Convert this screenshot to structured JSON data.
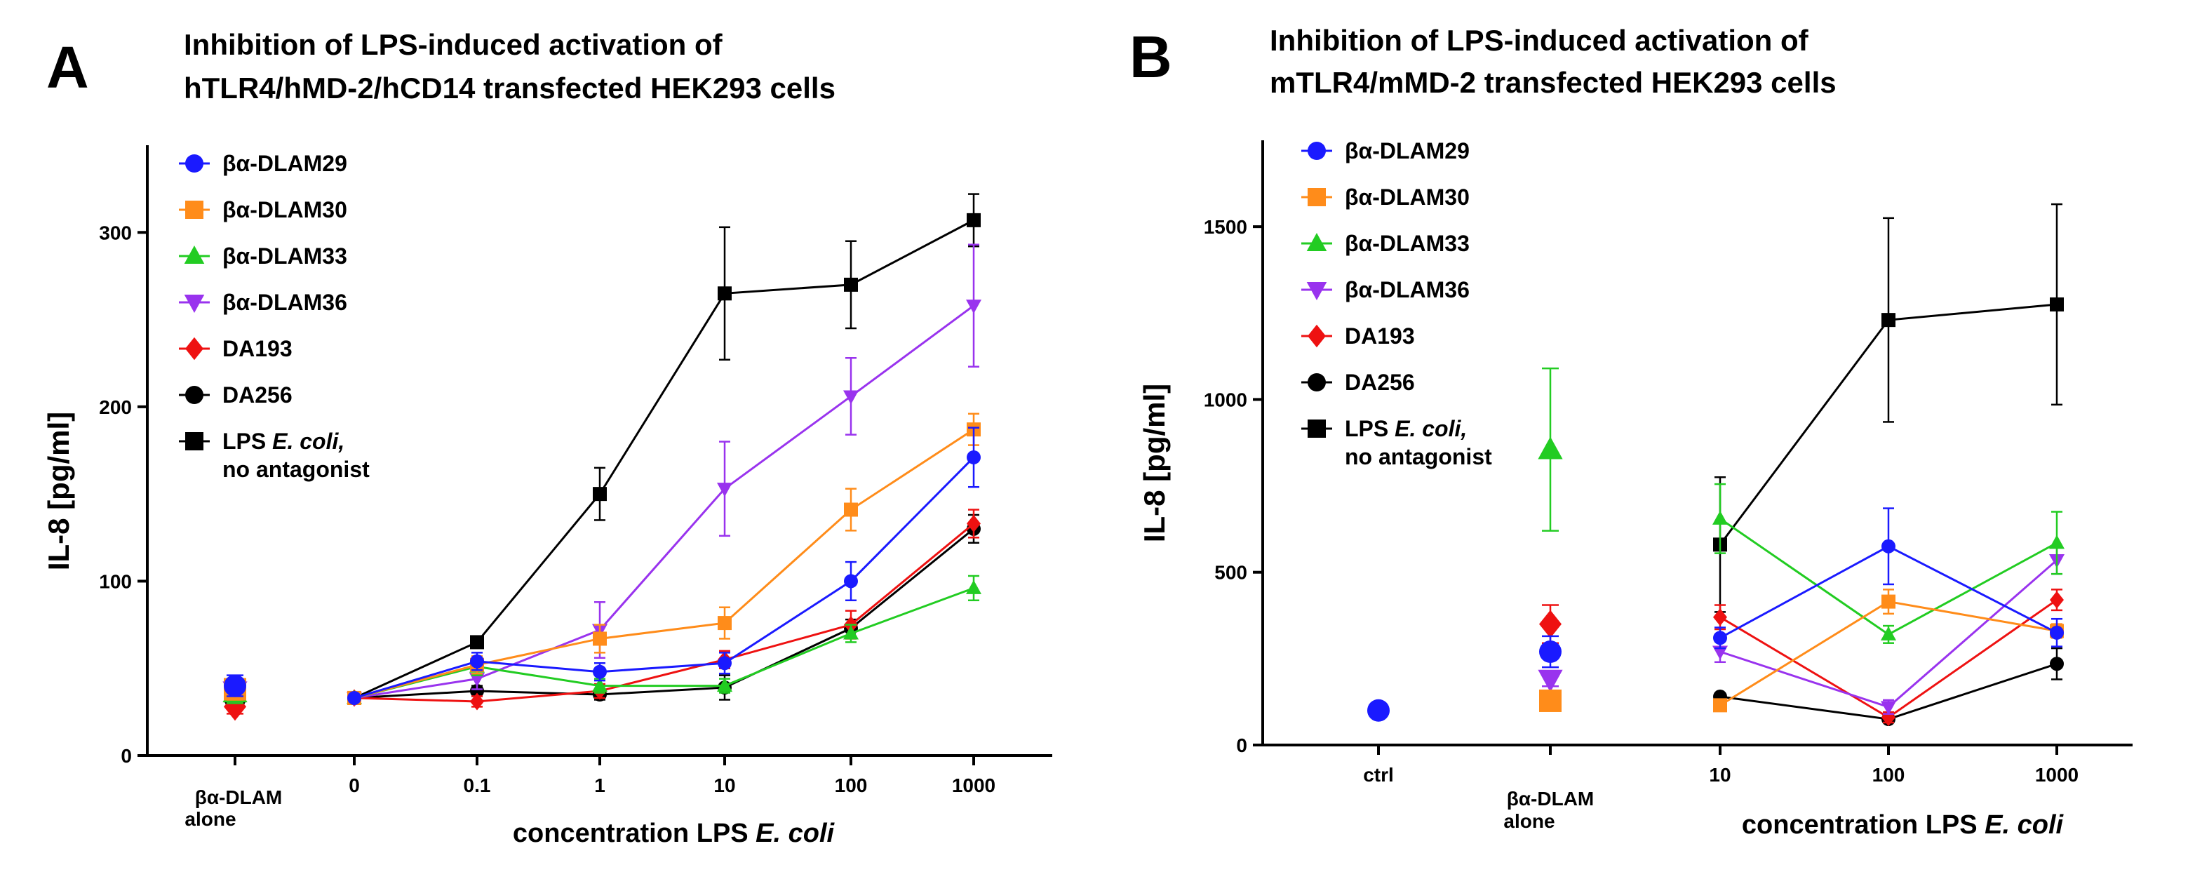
{
  "chart_data": [
    {
      "type": "line",
      "panel": "A",
      "title_lines": [
        "Inhibition of LPS-induced activation of",
        "hTLR4/hMD-2/hCD14 transfected HEK293 cells"
      ],
      "ylabel": "IL-8 [pg/ml]",
      "xlabel": "concentration LPS ",
      "xlabel_italic": "E. coli",
      "ylim": [
        0,
        350
      ],
      "yticks": [
        0,
        100,
        200,
        300
      ],
      "alone_label_lines": [
        "βα-DLAM",
        "alone"
      ],
      "categories": [
        "0",
        "0.1",
        "1",
        "10",
        "100",
        "1000"
      ],
      "series": [
        {
          "name": "βα-DLAM29",
          "color": "#1a1aff",
          "marker": "circle",
          "alone": 40,
          "alone_err": 6,
          "values": [
            33,
            54,
            48,
            53,
            100,
            171
          ],
          "errors": [
            2,
            5,
            5,
            6,
            11,
            17
          ]
        },
        {
          "name": "βα-DLAM30",
          "color": "#ff8c1a",
          "marker": "square",
          "alone": 38,
          "alone_err": 6,
          "values": [
            33,
            52,
            67,
            76,
            141,
            187
          ],
          "errors": [
            2,
            5,
            8,
            9,
            12,
            9
          ]
        },
        {
          "name": "βα-DLAM33",
          "color": "#22cc22",
          "marker": "triangle-up",
          "alone": 36,
          "alone_err": 6,
          "values": [
            33,
            51,
            40,
            40,
            70,
            96
          ],
          "errors": [
            2,
            5,
            4,
            4,
            5,
            7
          ]
        },
        {
          "name": "βα-DLAM36",
          "color": "#9933ee",
          "marker": "triangle-down",
          "alone": 37,
          "alone_err": 6,
          "values": [
            33,
            44,
            72,
            153,
            206,
            258
          ],
          "errors": [
            2,
            6,
            16,
            27,
            22,
            35
          ]
        },
        {
          "name": "DA193",
          "color": "#ee1111",
          "marker": "diamond",
          "alone": 28,
          "alone_err": 4,
          "values": [
            33,
            31,
            37,
            55,
            75,
            133
          ],
          "errors": [
            2,
            3,
            4,
            5,
            8,
            8
          ]
        },
        {
          "name": "DA256",
          "color": "#000000",
          "marker": "circle",
          "alone": 33,
          "alone_err": 4,
          "values": [
            33,
            37,
            35,
            39,
            73,
            130
          ],
          "errors": [
            2,
            3,
            3,
            7,
            5,
            8
          ]
        },
        {
          "name": "LPS ",
          "name_italic": "E. coli,",
          "name_line2": "no antagonist",
          "color": "#000000",
          "marker": "square",
          "alone": null,
          "values": [
            33,
            65,
            150,
            265,
            270,
            307
          ],
          "errors": [
            2,
            3,
            15,
            38,
            25,
            15
          ]
        }
      ]
    },
    {
      "type": "line",
      "panel": "B",
      "title_lines": [
        "Inhibition of LPS-induced activation of",
        "mTLR4/mMD-2 transfected HEK293 cells"
      ],
      "ylabel": "IL-8 [pg/ml]",
      "xlabel": "concentration LPS ",
      "xlabel_italic": "E. coli",
      "ylim": [
        0,
        1750
      ],
      "yticks": [
        0,
        500,
        1000,
        1500
      ],
      "ctrl_label": "ctrl",
      "ctrl_value": 100,
      "alone_label_lines": [
        "βα-DLAM",
        "alone"
      ],
      "categories": [
        "10",
        "100",
        "1000"
      ],
      "series": [
        {
          "name": "βα-DLAM29",
          "color": "#1a1aff",
          "marker": "circle",
          "alone": 270,
          "alone_err": 45,
          "values": [
            310,
            575,
            325
          ],
          "errors": [
            30,
            110,
            40
          ]
        },
        {
          "name": "βα-DLAM30",
          "color": "#ff8c1a",
          "marker": "square",
          "alone": 128,
          "alone_err": 15,
          "values": [
            115,
            415,
            330
          ],
          "errors": [
            15,
            35,
            20
          ]
        },
        {
          "name": "βα-DLAM33",
          "color": "#22cc22",
          "marker": "triangle-up",
          "alone": 855,
          "alone_err": 235,
          "values": [
            655,
            320,
            585
          ],
          "errors": [
            100,
            25,
            90
          ]
        },
        {
          "name": "βα-DLAM36",
          "color": "#9933ee",
          "marker": "triangle-down",
          "alone": 190,
          "alone_err": 20,
          "values": [
            270,
            110,
            535
          ],
          "errors": [
            30,
            20,
            40
          ]
        },
        {
          "name": "DA193",
          "color": "#ee1111",
          "marker": "diamond",
          "alone": 350,
          "alone_err": 55,
          "values": [
            370,
            80,
            420
          ],
          "errors": [
            35,
            15,
            30
          ]
        },
        {
          "name": "DA256",
          "color": "#000000",
          "marker": "circle",
          "alone": null,
          "values": [
            140,
            75,
            235
          ],
          "errors": [
            10,
            10,
            45
          ]
        },
        {
          "name": "LPS ",
          "name_italic": "E. coli,",
          "name_line2": "no antagonist",
          "color": "#000000",
          "marker": "square",
          "alone": null,
          "values": [
            580,
            1230,
            1275
          ],
          "errors": [
            195,
            295,
            290
          ]
        }
      ]
    }
  ]
}
